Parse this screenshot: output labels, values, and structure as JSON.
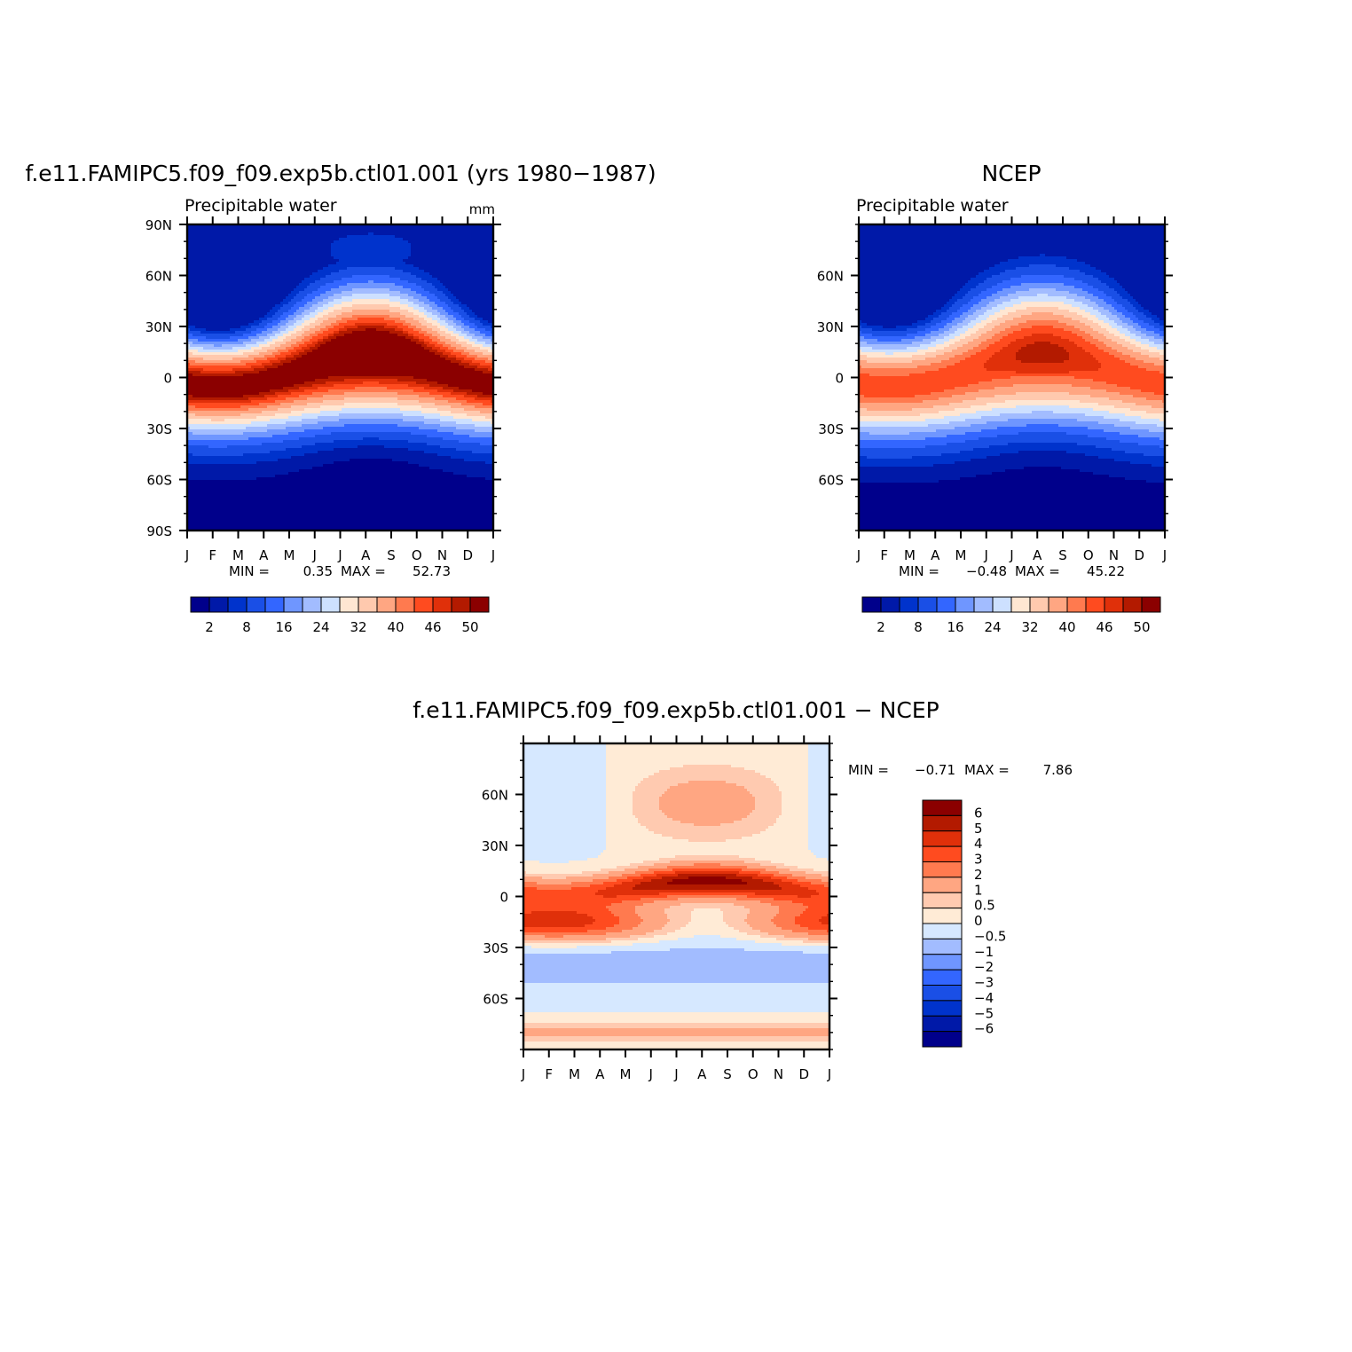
{
  "chart_data": [
    {
      "type": "heatmap",
      "id": "p1",
      "title": "f.e11.FAMIPC5.f09_f09.exp5b.ctl01.001 (yrs 1980−1987)",
      "subtitle": "Precipitable water",
      "units": "mm",
      "x_ticks": [
        "J",
        "F",
        "M",
        "A",
        "M",
        "J",
        "J",
        "A",
        "S",
        "O",
        "N",
        "D",
        "J"
      ],
      "y_ticks": [
        "90N",
        "60N",
        "30N",
        "0",
        "30S",
        "60S",
        "90S"
      ],
      "ylim": [
        -90,
        90
      ],
      "stats": {
        "min_label": "MIN =",
        "min": "0.35",
        "max_label": "MAX =",
        "max": "52.73"
      },
      "colorbar_labels": [
        "2",
        "8",
        "16",
        "24",
        "32",
        "40",
        "46",
        "50"
      ],
      "colorbar_orientation": "horizontal",
      "field": {
        "eq_max": 52.7,
        "itcz_lat0": 3,
        "itcz_amp": 7,
        "peak_phase": 7.2,
        "width": 24,
        "nh_max": 44,
        "sh_min": 0.4,
        "nh_min": 3
      }
    },
    {
      "type": "heatmap",
      "id": "p2",
      "title": "NCEP",
      "subtitle": "Precipitable water",
      "x_ticks": [
        "J",
        "F",
        "M",
        "A",
        "M",
        "J",
        "J",
        "A",
        "S",
        "O",
        "N",
        "D",
        "J"
      ],
      "y_ticks": [
        "60N",
        "30N",
        "0",
        "30S",
        "60S"
      ],
      "ylim": [
        -90,
        90
      ],
      "stats": {
        "min_label": "MIN =",
        "min": "−0.48",
        "max_label": "MAX =",
        "max": "45.22"
      },
      "colorbar_labels": [
        "2",
        "8",
        "16",
        "24",
        "32",
        "40",
        "46",
        "50"
      ],
      "colorbar_orientation": "horizontal",
      "field": {
        "eq_max": 45.2,
        "itcz_lat0": 3,
        "itcz_amp": 6,
        "peak_phase": 7.2,
        "width": 26,
        "nh_max": 38,
        "sh_min": 0.3,
        "nh_min": 2
      }
    },
    {
      "type": "heatmap",
      "id": "p3",
      "title": "f.e11.FAMIPC5.f09_f09.exp5b.ctl01.001 − NCEP",
      "x_ticks": [
        "J",
        "F",
        "M",
        "A",
        "M",
        "J",
        "J",
        "A",
        "S",
        "O",
        "N",
        "D",
        "J"
      ],
      "y_ticks": [
        "60N",
        "30N",
        "0",
        "30S",
        "60S"
      ],
      "ylim": [
        -90,
        90
      ],
      "stats": {
        "min_label": "MIN =",
        "min": "−0.71",
        "max_label": "MAX =",
        "max": "7.86"
      },
      "colorbar_labels": [
        "6",
        "5",
        "4",
        "3",
        "2",
        "1",
        "0.5",
        "0",
        "−0.5",
        "−1",
        "−2",
        "−3",
        "−4",
        "−5",
        "−6"
      ],
      "colorbar_orientation": "vertical"
    }
  ],
  "colors": {
    "abs_levels": [
      "#00008b",
      "#0019a8",
      "#0033cc",
      "#1a4fe6",
      "#3366ff",
      "#6f96ff",
      "#a2bcff",
      "#cde0ff",
      "#ffe6d2",
      "#ffc9ae",
      "#ffa682",
      "#ff7a4f",
      "#ff4b1f",
      "#e0300a",
      "#b31a00",
      "#8b0000"
    ],
    "diff_levels": [
      "#00008b",
      "#0019a8",
      "#0033cc",
      "#1a4fe6",
      "#3366ff",
      "#6f96ff",
      "#a2bcff",
      "#d6e8ff",
      "#ffebd6",
      "#ffcab0",
      "#ffa682",
      "#ff7a4f",
      "#ff4b1f",
      "#e0300a",
      "#b31a00",
      "#8b0000"
    ]
  }
}
